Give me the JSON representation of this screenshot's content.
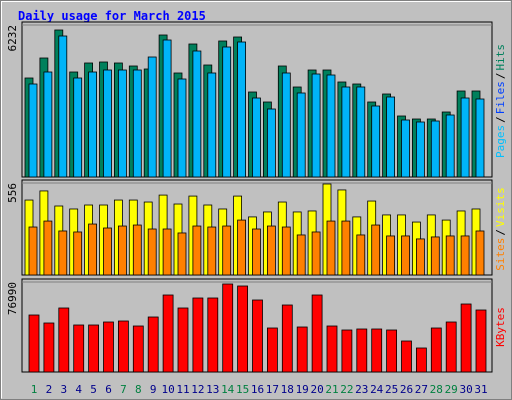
{
  "title": "Daily usage for March 2015",
  "legend_separator": "/",
  "chart_data": [
    {
      "type": "bar",
      "ylim": [
        0,
        6232
      ],
      "legend": [
        {
          "name": "Pages",
          "color": "#00c0ff"
        },
        {
          "name": "Files",
          "color": "#0040ff"
        },
        {
          "name": "Hits",
          "color": "#00805c"
        }
      ],
      "series": [
        {
          "color": "#00805c",
          "values": [
            4059,
            4879,
            6027,
            4305,
            4674,
            4715,
            4674,
            4551,
            4428,
            5822,
            4264,
            5453,
            4592,
            5576,
            5740,
            3485,
            3075,
            4551,
            3690,
            4387,
            4387,
            3895,
            3813,
            3075,
            3403,
            2501,
            2378,
            2378,
            2665,
            3526,
            3526
          ]
        },
        {
          "color": "#00b4f8",
          "values": [
            3813,
            4305,
            5781,
            4059,
            4305,
            4387,
            4387,
            4387,
            4920,
            5617,
            4018,
            5166,
            4264,
            5330,
            5535,
            3239,
            2788,
            4264,
            3444,
            4223,
            4182,
            3690,
            3690,
            2911,
            3280,
            2337,
            2255,
            2296,
            2542,
            3239,
            3198
          ]
        }
      ]
    },
    {
      "type": "bar",
      "ylim": [
        0,
        556
      ],
      "legend": [
        {
          "name": "Sites",
          "color": "#ff8000"
        },
        {
          "name": "Visits",
          "color": "#ffff00"
        }
      ],
      "series": [
        {
          "color": "#ffff00",
          "values": [
            453,
            508,
            417,
            399,
            423,
            423,
            453,
            453,
            441,
            483,
            429,
            477,
            423,
            399,
            477,
            351,
            381,
            441,
            381,
            387,
            550,
            514,
            351,
            447,
            363,
            363,
            320,
            363,
            332,
            387,
            399
          ]
        },
        {
          "color": "#ff8000",
          "values": [
            290,
            326,
            266,
            260,
            308,
            284,
            296,
            302,
            278,
            278,
            254,
            296,
            290,
            296,
            332,
            278,
            296,
            290,
            242,
            260,
            326,
            326,
            242,
            302,
            236,
            236,
            218,
            230,
            236,
            236,
            266
          ]
        }
      ]
    },
    {
      "type": "bar",
      "ylim": [
        0,
        76990
      ],
      "legend": [
        {
          "name": "KBytes",
          "color": "#ff0000"
        }
      ],
      "categories": [
        "1",
        "2",
        "3",
        "4",
        "5",
        "6",
        "7",
        "8",
        "9",
        "10",
        "11",
        "12",
        "13",
        "14",
        "15",
        "16",
        "17",
        "18",
        "19",
        "20",
        "21",
        "22",
        "23",
        "24",
        "25",
        "26",
        "27",
        "28",
        "29",
        "30",
        "31"
      ],
      "category_colors": [
        "#008040",
        "#00008b",
        "#00008b",
        "#00008b",
        "#00008b",
        "#00008b",
        "#008040",
        "#008040",
        "#00008b",
        "#00008b",
        "#00008b",
        "#00008b",
        "#00008b",
        "#008040",
        "#008040",
        "#00008b",
        "#00008b",
        "#00008b",
        "#00008b",
        "#00008b",
        "#008040",
        "#008040",
        "#00008b",
        "#00008b",
        "#00008b",
        "#00008b",
        "#00008b",
        "#008040",
        "#008040",
        "#00008b",
        "#00008b"
      ],
      "series": [
        {
          "color": "#ff0000",
          "values": [
            48760,
            41917,
            54749,
            40206,
            40206,
            42772,
            43627,
            39350,
            47049,
            65868,
            54749,
            63302,
            63302,
            75279,
            73568,
            61591,
            37639,
            57314,
            38494,
            65868,
            39350,
            35928,
            36784,
            36784,
            35928,
            26518,
            20531,
            37639,
            42772,
            58170,
            53037
          ]
        }
      ]
    }
  ]
}
